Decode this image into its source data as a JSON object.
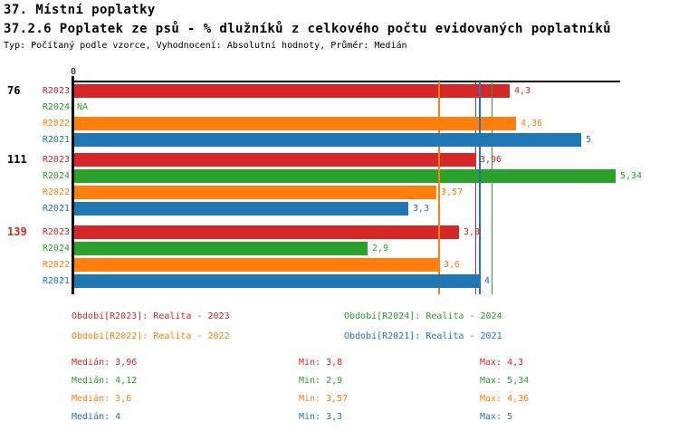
{
  "chart_data": {
    "type": "bar",
    "orientation": "horizontal",
    "title": "37. Místní poplatky",
    "subtitle": "37.2.6 Poplatek ze psů - % dlužníků z celkového počtu evidovaných poplatníků",
    "meta": "Typ: Počítaný podle vzorce, Vyhodnocení: Absolutní hodnoty, Průměr: Medián",
    "xlim": [
      0,
      5.4
    ],
    "x_tick_labels": [
      "0"
    ],
    "grid": false,
    "legend_position": "bottom",
    "series_order": [
      "R2023",
      "R2024",
      "R2022",
      "R2021"
    ],
    "series_colors": {
      "R2023": "#d62728",
      "R2024": "#2ca02c",
      "R2022": "#ff7f0e",
      "R2021": "#1f77b4"
    },
    "highlight_color": "#d62728",
    "text_color": "#000000",
    "groups": [
      {
        "label": "76",
        "highlight": false,
        "bars": [
          {
            "series": "R2023",
            "value": 4.3,
            "label": "4,3"
          },
          {
            "series": "R2024",
            "value": null,
            "label": "NA"
          },
          {
            "series": "R2022",
            "value": 4.36,
            "label": "4,36"
          },
          {
            "series": "R2021",
            "value": 5,
            "label": "5"
          }
        ]
      },
      {
        "label": "111",
        "highlight": false,
        "bars": [
          {
            "series": "R2023",
            "value": 3.96,
            "label": "3,96"
          },
          {
            "series": "R2024",
            "value": 5.34,
            "label": "5,34"
          },
          {
            "series": "R2022",
            "value": 3.57,
            "label": "3,57"
          },
          {
            "series": "R2021",
            "value": 3.3,
            "label": "3,3"
          }
        ]
      },
      {
        "label": "139",
        "highlight": true,
        "bars": [
          {
            "series": "R2023",
            "value": 3.8,
            "label": "3,8"
          },
          {
            "series": "R2024",
            "value": 2.9,
            "label": "2,9"
          },
          {
            "series": "R2022",
            "value": 3.6,
            "label": "3,6"
          },
          {
            "series": "R2021",
            "value": 4,
            "label": "4"
          }
        ]
      }
    ],
    "medians": [
      {
        "series": "R2023",
        "value": 3.96
      },
      {
        "series": "R2024",
        "value": 4.12
      },
      {
        "series": "R2022",
        "value": 3.6
      },
      {
        "series": "R2021",
        "value": 4
      }
    ],
    "legend": [
      {
        "series": "R2023",
        "label": "Období[R2023]: Realita - 2023"
      },
      {
        "series": "R2024",
        "label": "Období[R2024]: Realita - 2024"
      },
      {
        "series": "R2022",
        "label": "Období[R2022]: Realita - 2022"
      },
      {
        "series": "R2021",
        "label": "Období[R2021]: Realita - 2021"
      }
    ],
    "stats": [
      {
        "series": "R2023",
        "median_label": "Medián: 3,96",
        "min_label": "Min: 3,8",
        "max_label": "Max: 4,3",
        "median": 3.96,
        "min": 3.8,
        "max": 4.3
      },
      {
        "series": "R2024",
        "median_label": "Medián: 4,12",
        "min_label": "Min: 2,9",
        "max_label": "Max: 5,34",
        "median": 4.12,
        "min": 2.9,
        "max": 5.34
      },
      {
        "series": "R2022",
        "median_label": "Medián: 3,6",
        "min_label": "Min: 3,57",
        "max_label": "Max: 4,36",
        "median": 3.6,
        "min": 3.57,
        "max": 4.36
      },
      {
        "series": "R2021",
        "median_label": "Medián: 4",
        "min_label": "Min: 3,3",
        "max_label": "Max: 5",
        "median": 4,
        "min": 3.3,
        "max": 5
      }
    ]
  }
}
